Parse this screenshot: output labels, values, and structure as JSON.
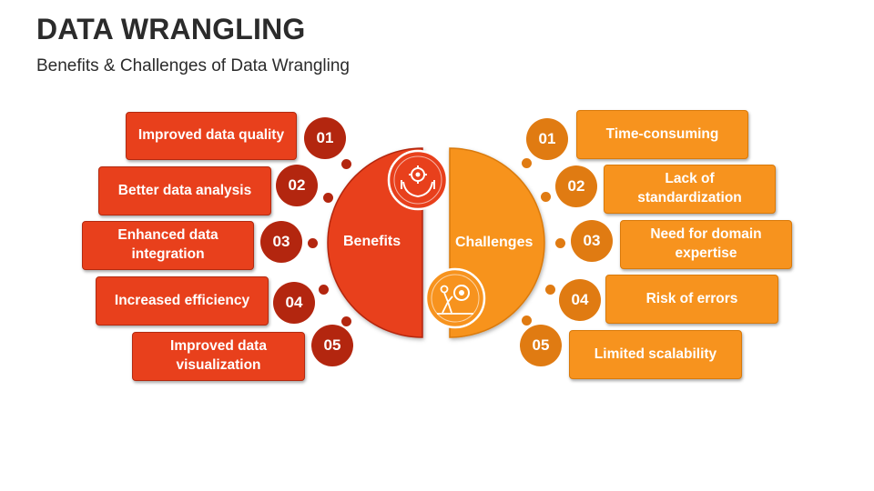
{
  "header": {
    "title": "DATA WRANGLING",
    "subtitle": "Benefits & Challenges of Data Wrangling"
  },
  "benefits": {
    "label": "Benefits",
    "icon": "hands-gear-icon",
    "items": [
      {
        "num": "01",
        "text": "Improved data quality"
      },
      {
        "num": "02",
        "text": "Better data analysis"
      },
      {
        "num": "03",
        "text": "Enhanced data integration"
      },
      {
        "num": "04",
        "text": "Increased efficiency"
      },
      {
        "num": "05",
        "text": "Improved data visualization"
      }
    ]
  },
  "challenges": {
    "label": "Challenges",
    "icon": "person-pushing-gear-icon",
    "items": [
      {
        "num": "01",
        "text": "Time-consuming"
      },
      {
        "num": "02",
        "text": "Lack of standardization"
      },
      {
        "num": "03",
        "text": "Need for domain expertise"
      },
      {
        "num": "04",
        "text": "Risk of errors"
      },
      {
        "num": "05",
        "text": "Limited scalability"
      }
    ]
  },
  "colors": {
    "benefit_fill": "#e8401c",
    "benefit_dark": "#b3260f",
    "challenge_fill": "#f7931e",
    "challenge_dark": "#e07b12"
  }
}
